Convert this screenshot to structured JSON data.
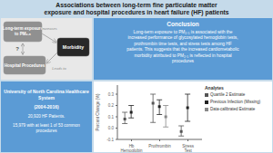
{
  "chart_data": {
    "type": "errorbar",
    "title": "Associations between long-term fine particulate matter\nexposure and hospital procedures in heart failure (HF) patients",
    "annotations": [
      "Long-term exposure\nto PM₂.₅",
      "Hospital Procedures",
      "Morbidity",
      "Increases",
      "Leads to",
      "?",
      "Conclusion",
      "Long-term exposure to PM₂.₅ is associated with the\nincreased performance of glycosylated hemoglobin tests,\nprothrombin time tests, and stress tests among HF\npatients. This suggests that the increased cardiometabolic\nmorbidity attributed to PM₂.₅ is reflected in hospital\nprocedures",
      "University of North Carolina Healthcare System",
      "(2004-2016)",
      "20,920 HF Patients.",
      "15,979 with at least 1 of 53 common procedures"
    ],
    "categories": [
      "Hb Hemoglobin",
      "Prothrombin",
      "Stress Test"
    ],
    "series": [
      {
        "name": "Quartile 2 Estimate",
        "color": "#555555",
        "values": [
          0.08,
          0.22,
          -0.03
        ],
        "low": [
          0.04,
          0.05,
          -0.07
        ],
        "high": [
          0.14,
          0.3,
          0.02
        ]
      },
      {
        "name": "Previous Infection (Missing)",
        "color": "#222222",
        "values": [
          0.14,
          0.19,
          0.18
        ],
        "low": [
          0.09,
          0.12,
          0.06
        ],
        "high": [
          0.2,
          0.25,
          0.3
        ]
      },
      {
        "name": "Data-calibrated Estimate",
        "color": "#888888",
        "values": [
          null,
          0.1,
          null
        ],
        "low": [
          null,
          0.01,
          null
        ],
        "high": [
          null,
          0.2,
          null
        ]
      }
    ],
    "ylabel": "Percent Change (%)",
    "ylim": [
      -0.1,
      0.38
    ],
    "yticks": [
      -0.1,
      {
        "value": 0,
        "label": "0.0"
      },
      0.1,
      0.2,
      0.3
    ],
    "legend": "right",
    "legend_title": "Analytes",
    "grid": false
  }
}
